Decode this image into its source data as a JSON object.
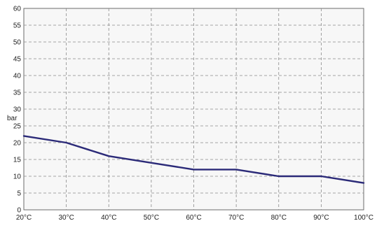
{
  "chart_data": {
    "type": "line",
    "title": "",
    "xlabel": "",
    "ylabel": "bar",
    "ylim": [
      0,
      60
    ],
    "yticks": [
      0,
      5,
      10,
      15,
      20,
      25,
      30,
      35,
      40,
      45,
      50,
      55,
      60
    ],
    "categories": [
      "20°C",
      "30°C",
      "40°C",
      "50°C",
      "60°C",
      "70°C",
      "80°C",
      "90°C",
      "100°C"
    ],
    "grid": true,
    "legend": "none",
    "colors": {
      "series": "#2b2a78",
      "grid": "#8a8a8a",
      "plot_background": "#f7f7f7"
    },
    "series": [
      {
        "values": [
          22,
          20,
          16,
          14,
          12,
          12,
          10,
          10,
          8
        ]
      }
    ]
  }
}
